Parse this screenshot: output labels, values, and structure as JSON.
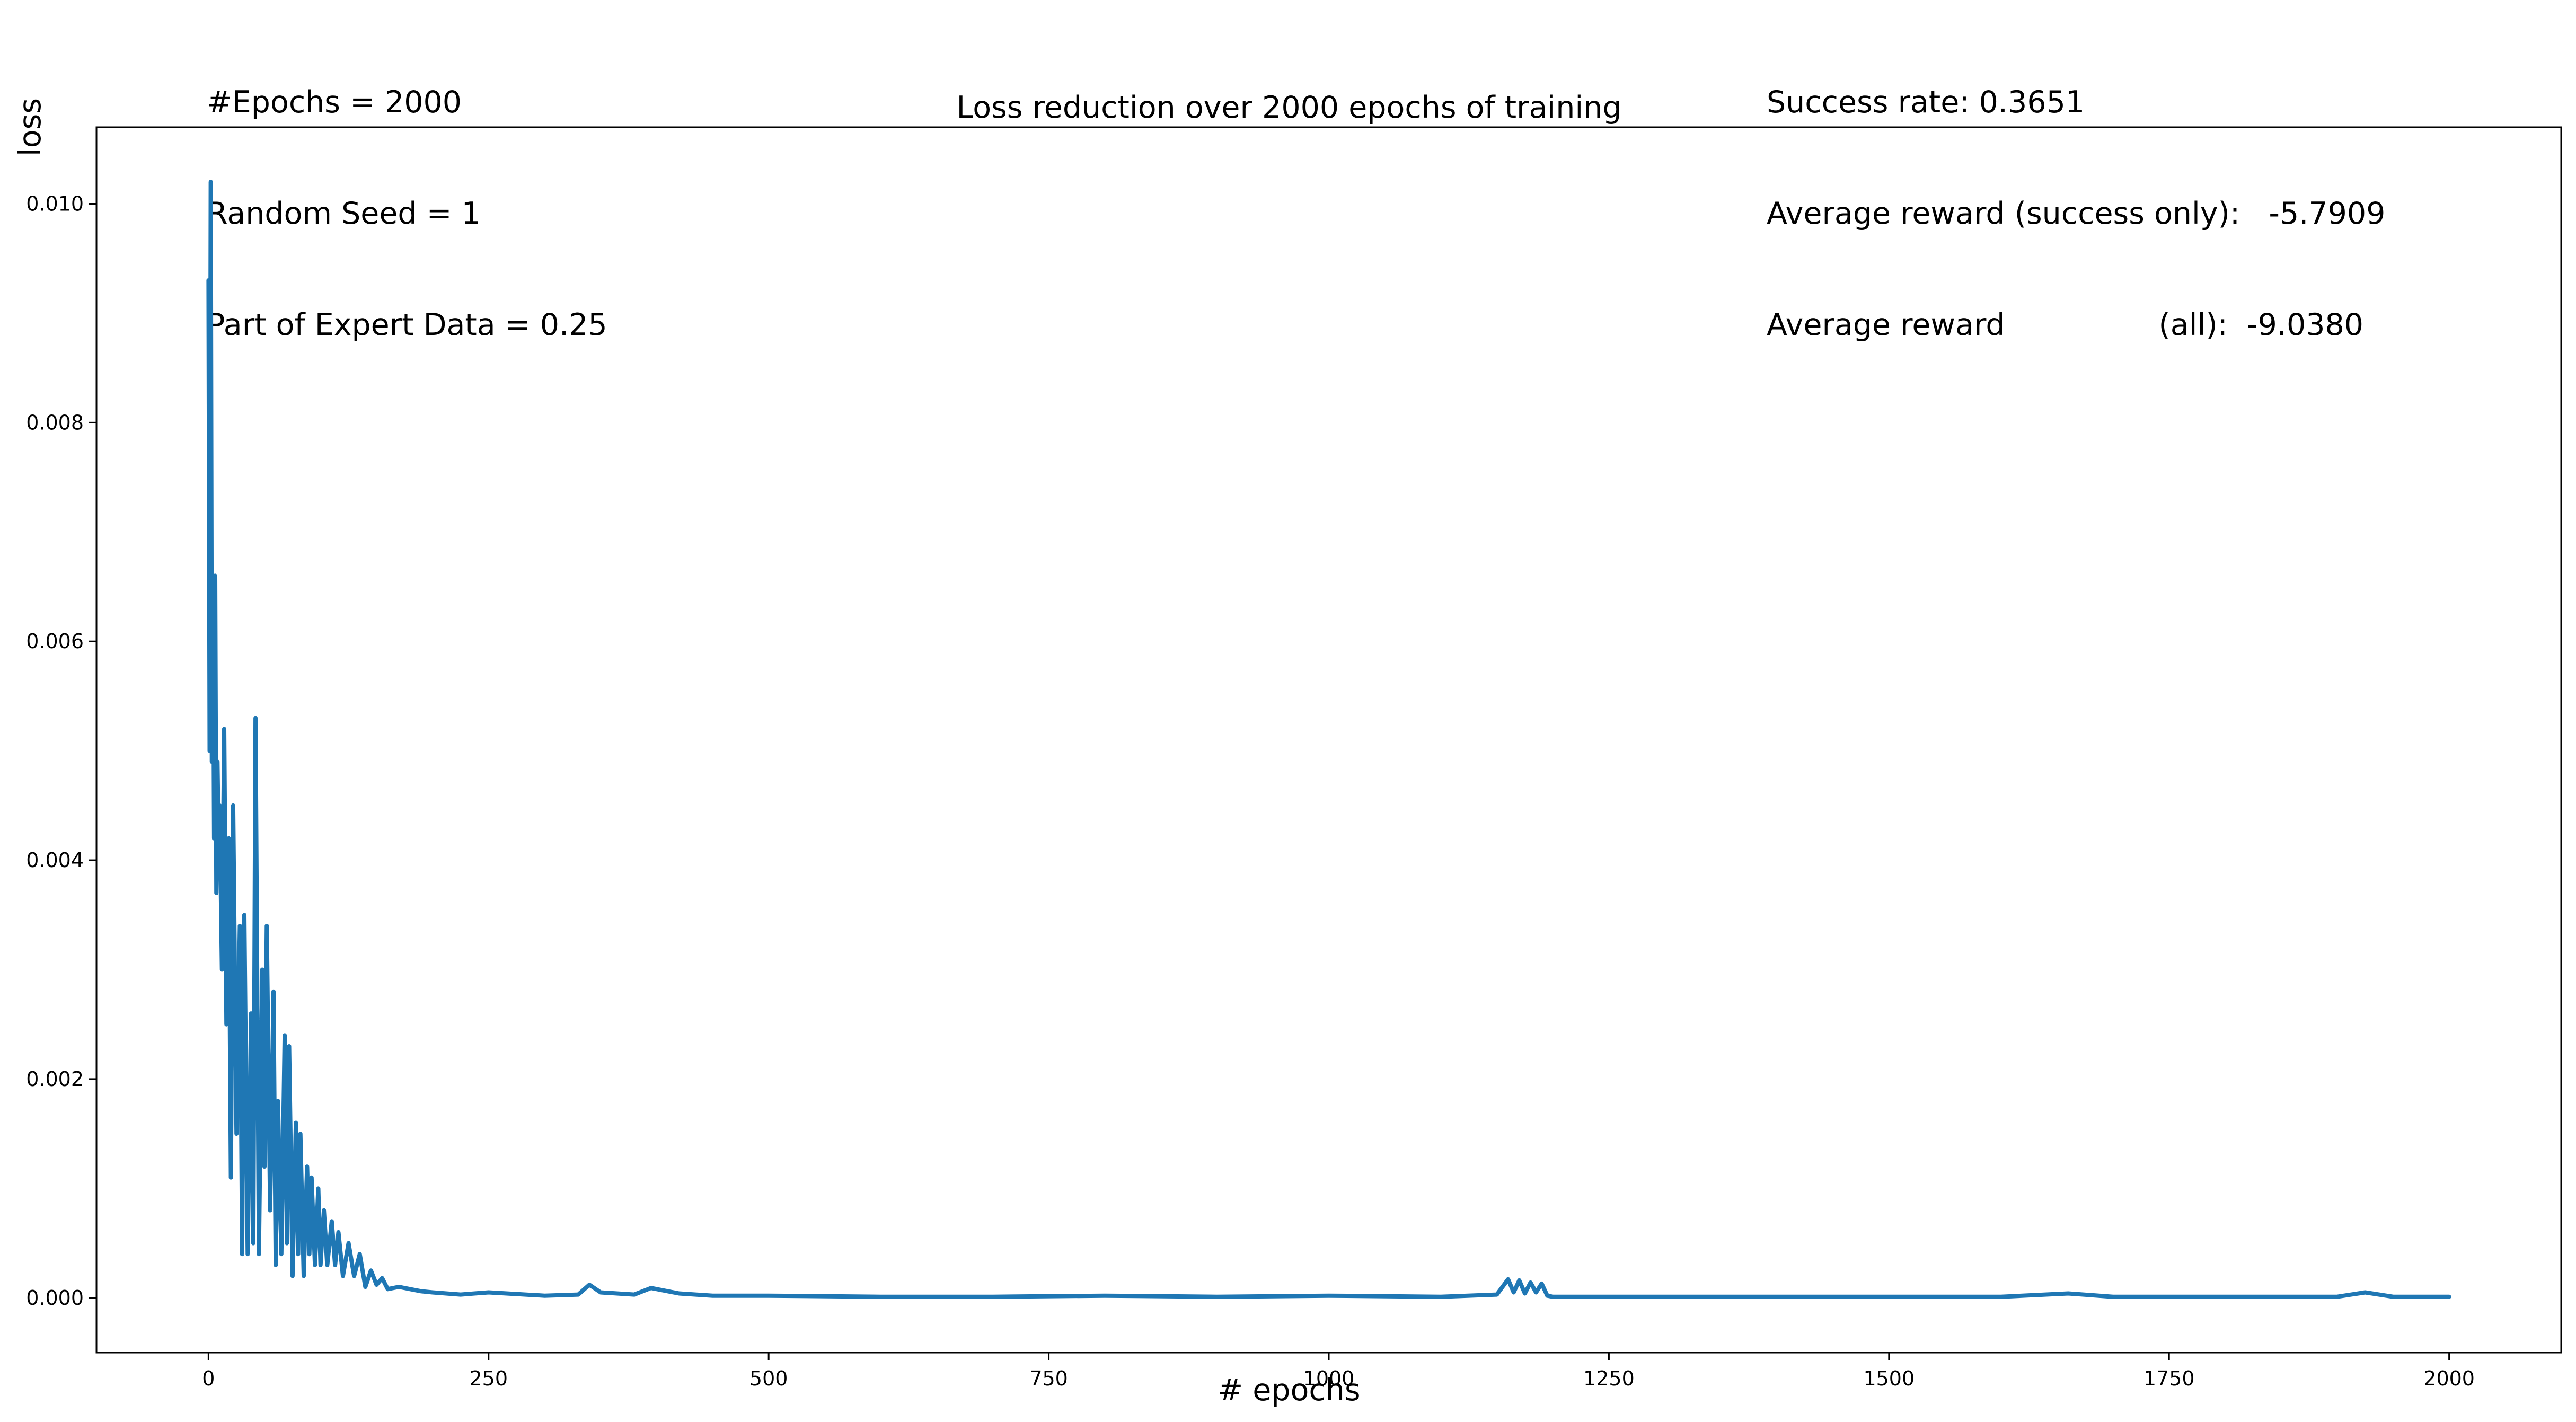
{
  "info_left": {
    "line1": "#Epochs = 2000",
    "line2": "Random Seed = 1",
    "line3": "Part of Expert Data = 0.25"
  },
  "info_right": {
    "line1": "Success rate: 0.3651",
    "line2": "Average reward (success only):   -5.7909",
    "line3": "Average reward                (all):  -9.0380"
  },
  "chart_data": {
    "type": "line",
    "title": "Loss reduction over 2000 epochs of training",
    "xlabel": "# epochs",
    "ylabel": "loss",
    "xlim": [
      -100,
      2100
    ],
    "ylim": [
      -0.0005,
      0.0107
    ],
    "xticks": [
      0,
      250,
      500,
      750,
      1000,
      1250,
      1500,
      1750,
      2000
    ],
    "xtick_labels": [
      "0",
      "250",
      "500",
      "750",
      "1000",
      "1250",
      "1500",
      "1750",
      "2000"
    ],
    "yticks": [
      0.0,
      0.002,
      0.004,
      0.006,
      0.008,
      0.01
    ],
    "ytick_labels": [
      "0.000",
      "0.002",
      "0.004",
      "0.006",
      "0.008",
      "0.010"
    ],
    "grid": false,
    "series_color": "#1f77b4",
    "series": [
      {
        "x": [
          0,
          1,
          2,
          3,
          4,
          5,
          6,
          7,
          8,
          9,
          10,
          12,
          14,
          16,
          18,
          20,
          22,
          25,
          28,
          30,
          32,
          35,
          38,
          40,
          42,
          45,
          48,
          50,
          52,
          55,
          58,
          60,
          62,
          65,
          68,
          70,
          72,
          75,
          78,
          80,
          82,
          85,
          88,
          90,
          92,
          95,
          98,
          100,
          103,
          106,
          110,
          113,
          116,
          120,
          125,
          130,
          135,
          140,
          145,
          150,
          155,
          160,
          170,
          180,
          190,
          200,
          225,
          250,
          300,
          330,
          340,
          350,
          380,
          395,
          420,
          450,
          500,
          600,
          700,
          800,
          900,
          1000,
          1100,
          1150,
          1160,
          1165,
          1170,
          1175,
          1180,
          1185,
          1190,
          1195,
          1200,
          1300,
          1400,
          1500,
          1600,
          1660,
          1700,
          1800,
          1900,
          1925,
          1950,
          2000
        ],
        "y": [
          0.0093,
          0.005,
          0.0102,
          0.0049,
          0.0066,
          0.0042,
          0.0066,
          0.0037,
          0.0049,
          0.0042,
          0.0045,
          0.003,
          0.0052,
          0.0025,
          0.0042,
          0.0011,
          0.0045,
          0.0015,
          0.0034,
          0.0004,
          0.0035,
          0.0004,
          0.0026,
          0.0005,
          0.0053,
          0.0004,
          0.003,
          0.0012,
          0.0034,
          0.0008,
          0.0028,
          0.0003,
          0.0018,
          0.0004,
          0.0024,
          0.0005,
          0.0023,
          0.0002,
          0.0016,
          0.0004,
          0.0015,
          0.0002,
          0.0012,
          0.0004,
          0.0011,
          0.0003,
          0.001,
          0.0003,
          0.0008,
          0.0003,
          0.0007,
          0.0003,
          0.0006,
          0.0002,
          0.0005,
          0.0002,
          0.0004,
          0.0001,
          0.00025,
          0.00012,
          0.00018,
          8e-05,
          0.0001,
          8e-05,
          6e-05,
          5e-05,
          3e-05,
          5e-05,
          2e-05,
          3e-05,
          0.00012,
          5e-05,
          3e-05,
          9e-05,
          4e-05,
          2e-05,
          2e-05,
          1e-05,
          1e-05,
          2e-05,
          1e-05,
          2e-05,
          1e-05,
          3e-05,
          0.00017,
          5e-05,
          0.00016,
          4e-05,
          0.00014,
          5e-05,
          0.00013,
          2e-05,
          1e-05,
          1e-05,
          1e-05,
          1e-05,
          1e-05,
          4e-05,
          1e-05,
          1e-05,
          1e-05,
          5e-05,
          1e-05,
          1e-05
        ]
      }
    ]
  }
}
